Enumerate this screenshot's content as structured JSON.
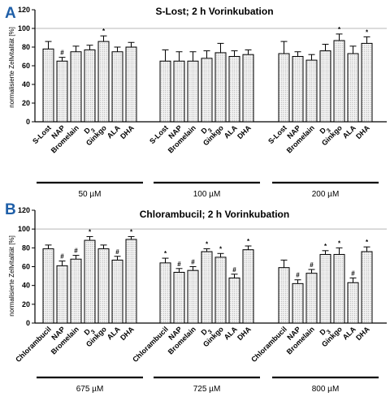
{
  "chart_data": [
    {
      "type": "bar",
      "panel": "A",
      "title": "S-Lost; 2 h Vorinkubation",
      "ylabel": "normalisierte Zellvitalität [%]",
      "ylim": [
        0,
        120
      ],
      "yticks": [
        "0",
        "20",
        "40",
        "60",
        "80",
        "100",
        "120"
      ],
      "reference_line": 100,
      "groups": [
        {
          "label": "50 µM",
          "categories": [
            "S-Lost",
            "NAP",
            "Bromelain",
            "D3",
            "Ginkgo",
            "ALA",
            "DHA"
          ],
          "values": [
            78,
            65,
            75,
            77,
            86,
            75,
            80
          ],
          "errors": [
            8,
            4,
            6,
            5,
            6,
            5,
            5
          ],
          "marks": [
            "",
            "#",
            "",
            "",
            "*",
            "",
            ""
          ]
        },
        {
          "label": "100 µM",
          "categories": [
            "S-Lost",
            "NAP",
            "Bromelain",
            "D3",
            "Ginkgo",
            "ALA",
            "DHA"
          ],
          "values": [
            65,
            65,
            65,
            68,
            74,
            70,
            72
          ],
          "errors": [
            12,
            10,
            10,
            8,
            10,
            6,
            5
          ],
          "marks": [
            "",
            "",
            "",
            "",
            "",
            "",
            ""
          ]
        },
        {
          "label": "200 µM",
          "categories": [
            "S-Lost",
            "NAP",
            "Bromelain",
            "D3",
            "Ginkgo",
            "ALA",
            "DHA"
          ],
          "values": [
            73,
            70,
            66,
            76,
            87,
            73,
            84
          ],
          "errors": [
            13,
            5,
            6,
            7,
            7,
            8,
            7
          ],
          "marks": [
            "",
            "",
            "",
            "",
            "*",
            "",
            "*"
          ]
        }
      ]
    },
    {
      "type": "bar",
      "panel": "B",
      "title": "Chlorambucil; 2 h Vorinkubation",
      "ylabel": "normalisierte Zellvitalität [%]",
      "ylim": [
        0,
        120
      ],
      "yticks": [
        "0",
        "20",
        "40",
        "60",
        "80",
        "100",
        "120"
      ],
      "reference_line": 100,
      "groups": [
        {
          "label": "675 µM",
          "categories": [
            "Chlorambucil",
            "NAP",
            "Bromelain",
            "D3",
            "Ginkgo",
            "ALA",
            "DHA"
          ],
          "values": [
            79,
            61,
            68,
            88,
            79,
            67,
            89
          ],
          "errors": [
            4,
            5,
            4,
            4,
            4,
            4,
            3
          ],
          "marks": [
            "",
            "#",
            "#",
            "*",
            "",
            "#",
            "*"
          ]
        },
        {
          "label": "725 µM",
          "categories": [
            "Chlorambucil",
            "NAP",
            "Bromelain",
            "D3",
            "Ginkgo",
            "ALA",
            "DHA"
          ],
          "values": [
            64,
            54,
            56,
            76,
            70,
            48,
            78
          ],
          "errors": [
            5,
            4,
            4,
            3,
            4,
            4,
            4
          ],
          "marks": [
            "*",
            "#",
            "#",
            "*",
            "*",
            "#",
            "*"
          ]
        },
        {
          "label": "800 µM",
          "categories": [
            "Chlorambucil",
            "NAP",
            "Bromelain",
            "D3",
            "Ginkgo",
            "ALA",
            "DHA"
          ],
          "values": [
            59,
            42,
            53,
            73,
            73,
            43,
            76
          ],
          "errors": [
            8,
            4,
            4,
            4,
            7,
            5,
            5
          ],
          "marks": [
            "",
            "#",
            "#",
            "*",
            "*",
            "#",
            "*"
          ]
        }
      ]
    }
  ]
}
